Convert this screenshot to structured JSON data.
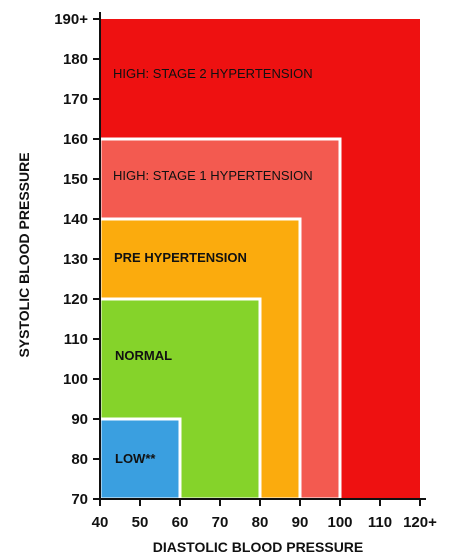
{
  "chart_data": {
    "type": "area",
    "title": "",
    "xlabel": "DIASTOLIC BLOOD PRESSURE",
    "ylabel": "SYSTOLIC BLOOD PRESSURE",
    "xlim": [
      40,
      120
    ],
    "ylim": [
      70,
      190
    ],
    "x_ticks": [
      "40",
      "50",
      "60",
      "70",
      "80",
      "90",
      "100",
      "110",
      "120+"
    ],
    "y_ticks": [
      "70",
      "80",
      "90",
      "100",
      "110",
      "120",
      "130",
      "140",
      "150",
      "160",
      "170",
      "180",
      "190+"
    ],
    "zones": [
      {
        "label": "HIGH: STAGE 2 HYPERTENSION",
        "x_max": 120,
        "y_max": 190,
        "color": "#ee1111"
      },
      {
        "label": "HIGH: STAGE 1 HYPERTENSION",
        "x_max": 100,
        "y_max": 160,
        "color": "#f35a50"
      },
      {
        "label": "PRE HYPERTENSION",
        "x_max": 90,
        "y_max": 140,
        "color": "#fbab0d"
      },
      {
        "label": "NORMAL",
        "x_max": 80,
        "y_max": 120,
        "color": "#85d32a"
      },
      {
        "label": "LOW**",
        "x_max": 60,
        "y_max": 90,
        "color": "#3a9fe0"
      }
    ],
    "grid": false,
    "legend": "none"
  }
}
